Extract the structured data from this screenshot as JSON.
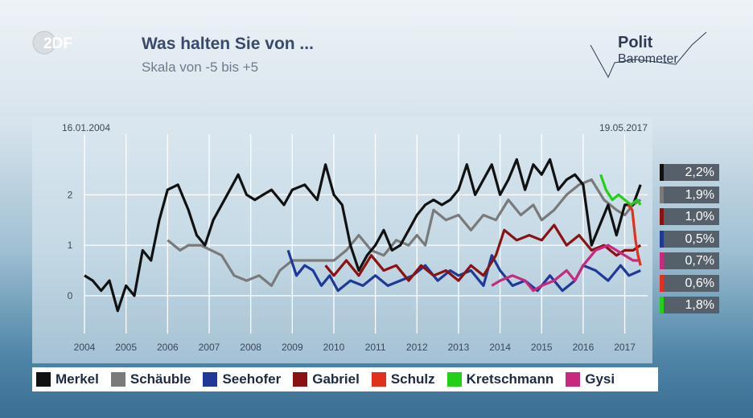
{
  "header": {
    "logo_text": "2DF",
    "title": "Was halten Sie von ...",
    "subtitle": "Skala von -5 bis +5",
    "brand_line1": "Polit",
    "brand_line2": "Barometer"
  },
  "chart_data": {
    "type": "line",
    "title": "Was halten Sie von ...",
    "subtitle": "Skala von -5 bis +5",
    "date_start": "16.01.2004",
    "date_end": "19.05.2017",
    "xlim": [
      2004,
      2017.55
    ],
    "ylim": [
      -0.75,
      3.2
    ],
    "x_ticks": [
      2004,
      2005,
      2006,
      2007,
      2008,
      2009,
      2010,
      2011,
      2012,
      2013,
      2014,
      2015,
      2016,
      2017
    ],
    "y_ticks": [
      0,
      1,
      2
    ],
    "series": [
      {
        "name": "Merkel",
        "color": "#111111",
        "final_label": "2,2%",
        "points": [
          [
            2004.0,
            0.4
          ],
          [
            2004.2,
            0.3
          ],
          [
            2004.4,
            0.1
          ],
          [
            2004.6,
            0.3
          ],
          [
            2004.8,
            -0.3
          ],
          [
            2005.0,
            0.2
          ],
          [
            2005.2,
            0.0
          ],
          [
            2005.4,
            0.9
          ],
          [
            2005.6,
            0.7
          ],
          [
            2005.8,
            1.5
          ],
          [
            2006.0,
            2.1
          ],
          [
            2006.25,
            2.2
          ],
          [
            2006.5,
            1.7
          ],
          [
            2006.7,
            1.2
          ],
          [
            2006.9,
            1.0
          ],
          [
            2007.1,
            1.5
          ],
          [
            2007.3,
            1.8
          ],
          [
            2007.5,
            2.1
          ],
          [
            2007.7,
            2.4
          ],
          [
            2007.9,
            2.0
          ],
          [
            2008.1,
            1.9
          ],
          [
            2008.3,
            2.0
          ],
          [
            2008.5,
            2.1
          ],
          [
            2008.8,
            1.8
          ],
          [
            2009.0,
            2.1
          ],
          [
            2009.3,
            2.2
          ],
          [
            2009.6,
            1.9
          ],
          [
            2009.8,
            2.6
          ],
          [
            2010.0,
            2.0
          ],
          [
            2010.2,
            1.8
          ],
          [
            2010.4,
            1.0
          ],
          [
            2010.6,
            0.5
          ],
          [
            2010.8,
            0.8
          ],
          [
            2011.0,
            1.0
          ],
          [
            2011.2,
            1.3
          ],
          [
            2011.4,
            0.9
          ],
          [
            2011.6,
            1.0
          ],
          [
            2011.8,
            1.3
          ],
          [
            2012.0,
            1.6
          ],
          [
            2012.2,
            1.8
          ],
          [
            2012.4,
            1.9
          ],
          [
            2012.6,
            1.8
          ],
          [
            2012.8,
            1.9
          ],
          [
            2013.0,
            2.1
          ],
          [
            2013.2,
            2.6
          ],
          [
            2013.4,
            2.0
          ],
          [
            2013.6,
            2.3
          ],
          [
            2013.8,
            2.6
          ],
          [
            2014.0,
            2.0
          ],
          [
            2014.2,
            2.3
          ],
          [
            2014.4,
            2.7
          ],
          [
            2014.6,
            2.1
          ],
          [
            2014.8,
            2.6
          ],
          [
            2015.0,
            2.4
          ],
          [
            2015.2,
            2.7
          ],
          [
            2015.4,
            2.1
          ],
          [
            2015.6,
            2.3
          ],
          [
            2015.8,
            2.4
          ],
          [
            2016.0,
            2.2
          ],
          [
            2016.2,
            1.0
          ],
          [
            2016.4,
            1.4
          ],
          [
            2016.6,
            1.8
          ],
          [
            2016.8,
            1.2
          ],
          [
            2017.0,
            1.8
          ],
          [
            2017.2,
            1.8
          ],
          [
            2017.38,
            2.2
          ]
        ]
      },
      {
        "name": "Schäuble",
        "color": "#7a7a7a",
        "final_label": "1,9%",
        "points": [
          [
            2006.0,
            1.1
          ],
          [
            2006.3,
            0.9
          ],
          [
            2006.5,
            1.0
          ],
          [
            2006.8,
            1.0
          ],
          [
            2007.3,
            0.8
          ],
          [
            2007.6,
            0.4
          ],
          [
            2007.9,
            0.3
          ],
          [
            2008.2,
            0.4
          ],
          [
            2008.5,
            0.2
          ],
          [
            2008.7,
            0.5
          ],
          [
            2009.0,
            0.7
          ],
          [
            2010.0,
            0.7
          ],
          [
            2010.3,
            0.9
          ],
          [
            2010.6,
            1.2
          ],
          [
            2010.9,
            0.9
          ],
          [
            2011.2,
            0.8
          ],
          [
            2011.5,
            1.1
          ],
          [
            2011.8,
            1.0
          ],
          [
            2012.0,
            1.2
          ],
          [
            2012.2,
            1.0
          ],
          [
            2012.4,
            1.7
          ],
          [
            2012.7,
            1.5
          ],
          [
            2013.0,
            1.6
          ],
          [
            2013.3,
            1.3
          ],
          [
            2013.6,
            1.6
          ],
          [
            2013.9,
            1.5
          ],
          [
            2014.2,
            1.9
          ],
          [
            2014.5,
            1.6
          ],
          [
            2014.8,
            1.8
          ],
          [
            2015.0,
            1.5
          ],
          [
            2015.3,
            1.7
          ],
          [
            2015.6,
            2.0
          ],
          [
            2015.9,
            2.2
          ],
          [
            2016.2,
            2.3
          ],
          [
            2016.5,
            1.9
          ],
          [
            2016.8,
            1.7
          ],
          [
            2017.0,
            1.6
          ],
          [
            2017.2,
            1.8
          ],
          [
            2017.38,
            1.9
          ]
        ]
      },
      {
        "name": "Seehofer",
        "color": "#1f3a96",
        "final_label": "0,5%",
        "points": [
          [
            2008.9,
            0.9
          ],
          [
            2009.1,
            0.4
          ],
          [
            2009.3,
            0.6
          ],
          [
            2009.5,
            0.5
          ],
          [
            2009.7,
            0.2
          ],
          [
            2009.9,
            0.4
          ],
          [
            2010.1,
            0.1
          ],
          [
            2010.4,
            0.3
          ],
          [
            2010.7,
            0.2
          ],
          [
            2011.0,
            0.4
          ],
          [
            2011.3,
            0.2
          ],
          [
            2011.6,
            0.3
          ],
          [
            2011.9,
            0.4
          ],
          [
            2012.2,
            0.6
          ],
          [
            2012.5,
            0.3
          ],
          [
            2012.8,
            0.5
          ],
          [
            2013.0,
            0.4
          ],
          [
            2013.3,
            0.5
          ],
          [
            2013.6,
            0.2
          ],
          [
            2013.8,
            0.8
          ],
          [
            2014.0,
            0.5
          ],
          [
            2014.3,
            0.2
          ],
          [
            2014.6,
            0.3
          ],
          [
            2014.9,
            0.1
          ],
          [
            2015.2,
            0.4
          ],
          [
            2015.5,
            0.1
          ],
          [
            2015.8,
            0.3
          ],
          [
            2016.0,
            0.6
          ],
          [
            2016.3,
            0.5
          ],
          [
            2016.6,
            0.3
          ],
          [
            2016.9,
            0.6
          ],
          [
            2017.1,
            0.4
          ],
          [
            2017.38,
            0.5
          ]
        ]
      },
      {
        "name": "Gabriel",
        "color": "#8b1212",
        "final_label": "1,0%",
        "points": [
          [
            2009.8,
            0.6
          ],
          [
            2010.0,
            0.4
          ],
          [
            2010.3,
            0.7
          ],
          [
            2010.6,
            0.4
          ],
          [
            2010.9,
            0.8
          ],
          [
            2011.2,
            0.5
          ],
          [
            2011.5,
            0.6
          ],
          [
            2011.8,
            0.3
          ],
          [
            2012.1,
            0.6
          ],
          [
            2012.4,
            0.4
          ],
          [
            2012.7,
            0.5
          ],
          [
            2013.0,
            0.3
          ],
          [
            2013.3,
            0.6
          ],
          [
            2013.6,
            0.4
          ],
          [
            2013.9,
            0.8
          ],
          [
            2014.1,
            1.3
          ],
          [
            2014.4,
            1.1
          ],
          [
            2014.7,
            1.2
          ],
          [
            2015.0,
            1.1
          ],
          [
            2015.3,
            1.4
          ],
          [
            2015.6,
            1.0
          ],
          [
            2015.9,
            1.2
          ],
          [
            2016.2,
            0.9
          ],
          [
            2016.5,
            1.0
          ],
          [
            2016.8,
            0.8
          ],
          [
            2017.0,
            0.9
          ],
          [
            2017.2,
            0.9
          ],
          [
            2017.38,
            1.0
          ]
        ]
      },
      {
        "name": "Schulz",
        "color": "#e0301e",
        "final_label": "0,6%",
        "points": [
          [
            2017.08,
            1.8
          ],
          [
            2017.18,
            1.7
          ],
          [
            2017.26,
            1.1
          ],
          [
            2017.32,
            0.8
          ],
          [
            2017.38,
            0.6
          ]
        ]
      },
      {
        "name": "Kretschmann",
        "color": "#22d016",
        "final_label": "1,8%",
        "points": [
          [
            2016.42,
            2.4
          ],
          [
            2016.55,
            2.1
          ],
          [
            2016.7,
            1.9
          ],
          [
            2016.85,
            2.0
          ],
          [
            2017.0,
            1.9
          ],
          [
            2017.15,
            1.8
          ],
          [
            2017.3,
            1.9
          ],
          [
            2017.38,
            1.8
          ]
        ]
      },
      {
        "name": "Gysi",
        "color": "#c8287d",
        "final_label": "0,7%",
        "points": [
          [
            2013.8,
            0.2
          ],
          [
            2014.0,
            0.3
          ],
          [
            2014.3,
            0.4
          ],
          [
            2014.6,
            0.3
          ],
          [
            2014.8,
            0.1
          ],
          [
            2015.0,
            0.2
          ],
          [
            2015.3,
            0.3
          ],
          [
            2015.6,
            0.5
          ],
          [
            2015.8,
            0.3
          ],
          [
            2016.0,
            0.6
          ],
          [
            2016.3,
            0.9
          ],
          [
            2016.6,
            1.0
          ],
          [
            2016.8,
            0.9
          ],
          [
            2017.0,
            0.8
          ],
          [
            2017.2,
            0.7
          ],
          [
            2017.38,
            0.7
          ]
        ]
      }
    ]
  }
}
